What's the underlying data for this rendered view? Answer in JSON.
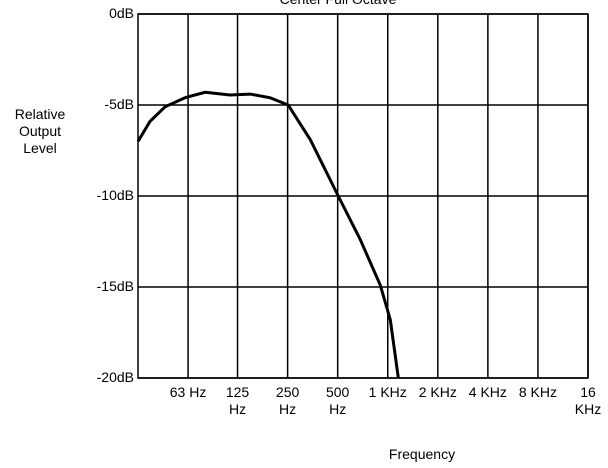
{
  "chart_data": {
    "type": "line",
    "title": "Center Full Octave",
    "x_label": "Frequency",
    "y_label": "Relative Output Level",
    "log_x": true,
    "grid": true,
    "xlim": [
      31.5,
      16000
    ],
    "xticks": [
      {
        "value": 63,
        "label": "63 Hz"
      },
      {
        "value": 125,
        "label": "125 Hz"
      },
      {
        "value": 250,
        "label": "250 Hz"
      },
      {
        "value": 500,
        "label": "500 Hz"
      },
      {
        "value": 1000,
        "label": "1 KHz"
      },
      {
        "value": 2000,
        "label": "2 KHz"
      },
      {
        "value": 4000,
        "label": "4 KHz"
      },
      {
        "value": 8000,
        "label": "8 KHz"
      },
      {
        "value": 16000,
        "label": "16 KHz"
      }
    ],
    "ylim": [
      -20,
      0
    ],
    "yticks": [
      {
        "value": 0,
        "label": "0dB"
      },
      {
        "value": -5,
        "label": "-5dB"
      },
      {
        "value": -10,
        "label": "-10dB"
      },
      {
        "value": -15,
        "label": "-15dB"
      },
      {
        "value": -20,
        "label": "-20dB"
      }
    ],
    "x": [
      31.5,
      37.2,
      45.8,
      60.4,
      79.8,
      112.8,
      148.8,
      196,
      252,
      342,
      504,
      684,
      902,
      1036,
      1158
    ],
    "series": [
      {
        "color": "#000000",
        "values": [
          -7.0,
          -5.9,
          -5.1,
          -4.6,
          -4.3,
          -4.45,
          -4.4,
          -4.6,
          -5.0,
          -6.9,
          -10.0,
          -12.4,
          -14.9,
          -16.8,
          -20.0
        ]
      }
    ]
  }
}
